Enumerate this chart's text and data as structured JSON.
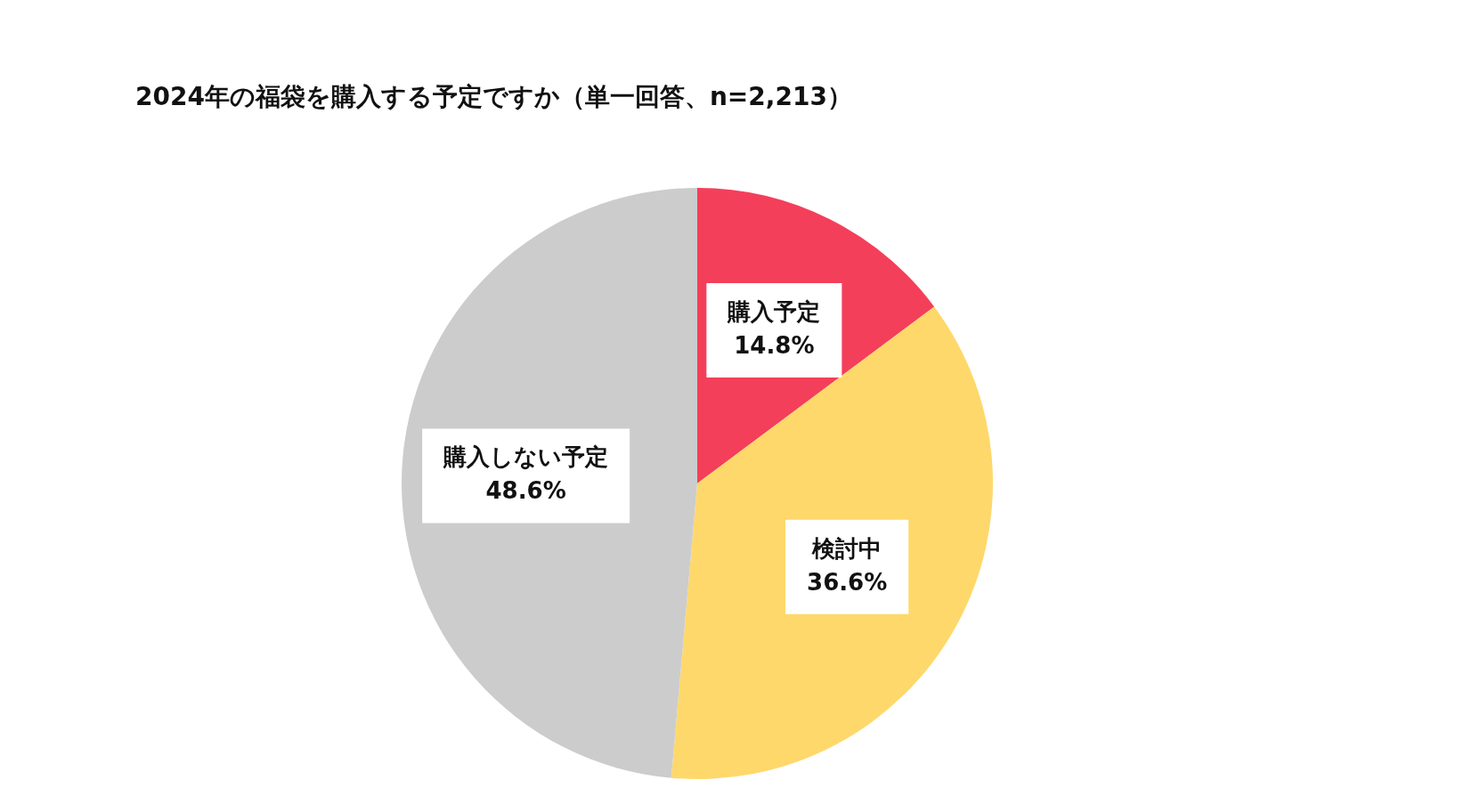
{
  "chart_data": {
    "type": "pie",
    "title": "2024年の福袋を購入する予定ですか（単一回答、n=2,213）",
    "categories": [
      "購入予定",
      "検討中",
      "購入しない予定"
    ],
    "values": [
      14.8,
      36.6,
      48.6
    ],
    "value_labels": [
      "14.8%",
      "36.6%",
      "48.6%"
    ],
    "colors": [
      "#f43f5a",
      "#fed86b",
      "#cccccc"
    ]
  }
}
